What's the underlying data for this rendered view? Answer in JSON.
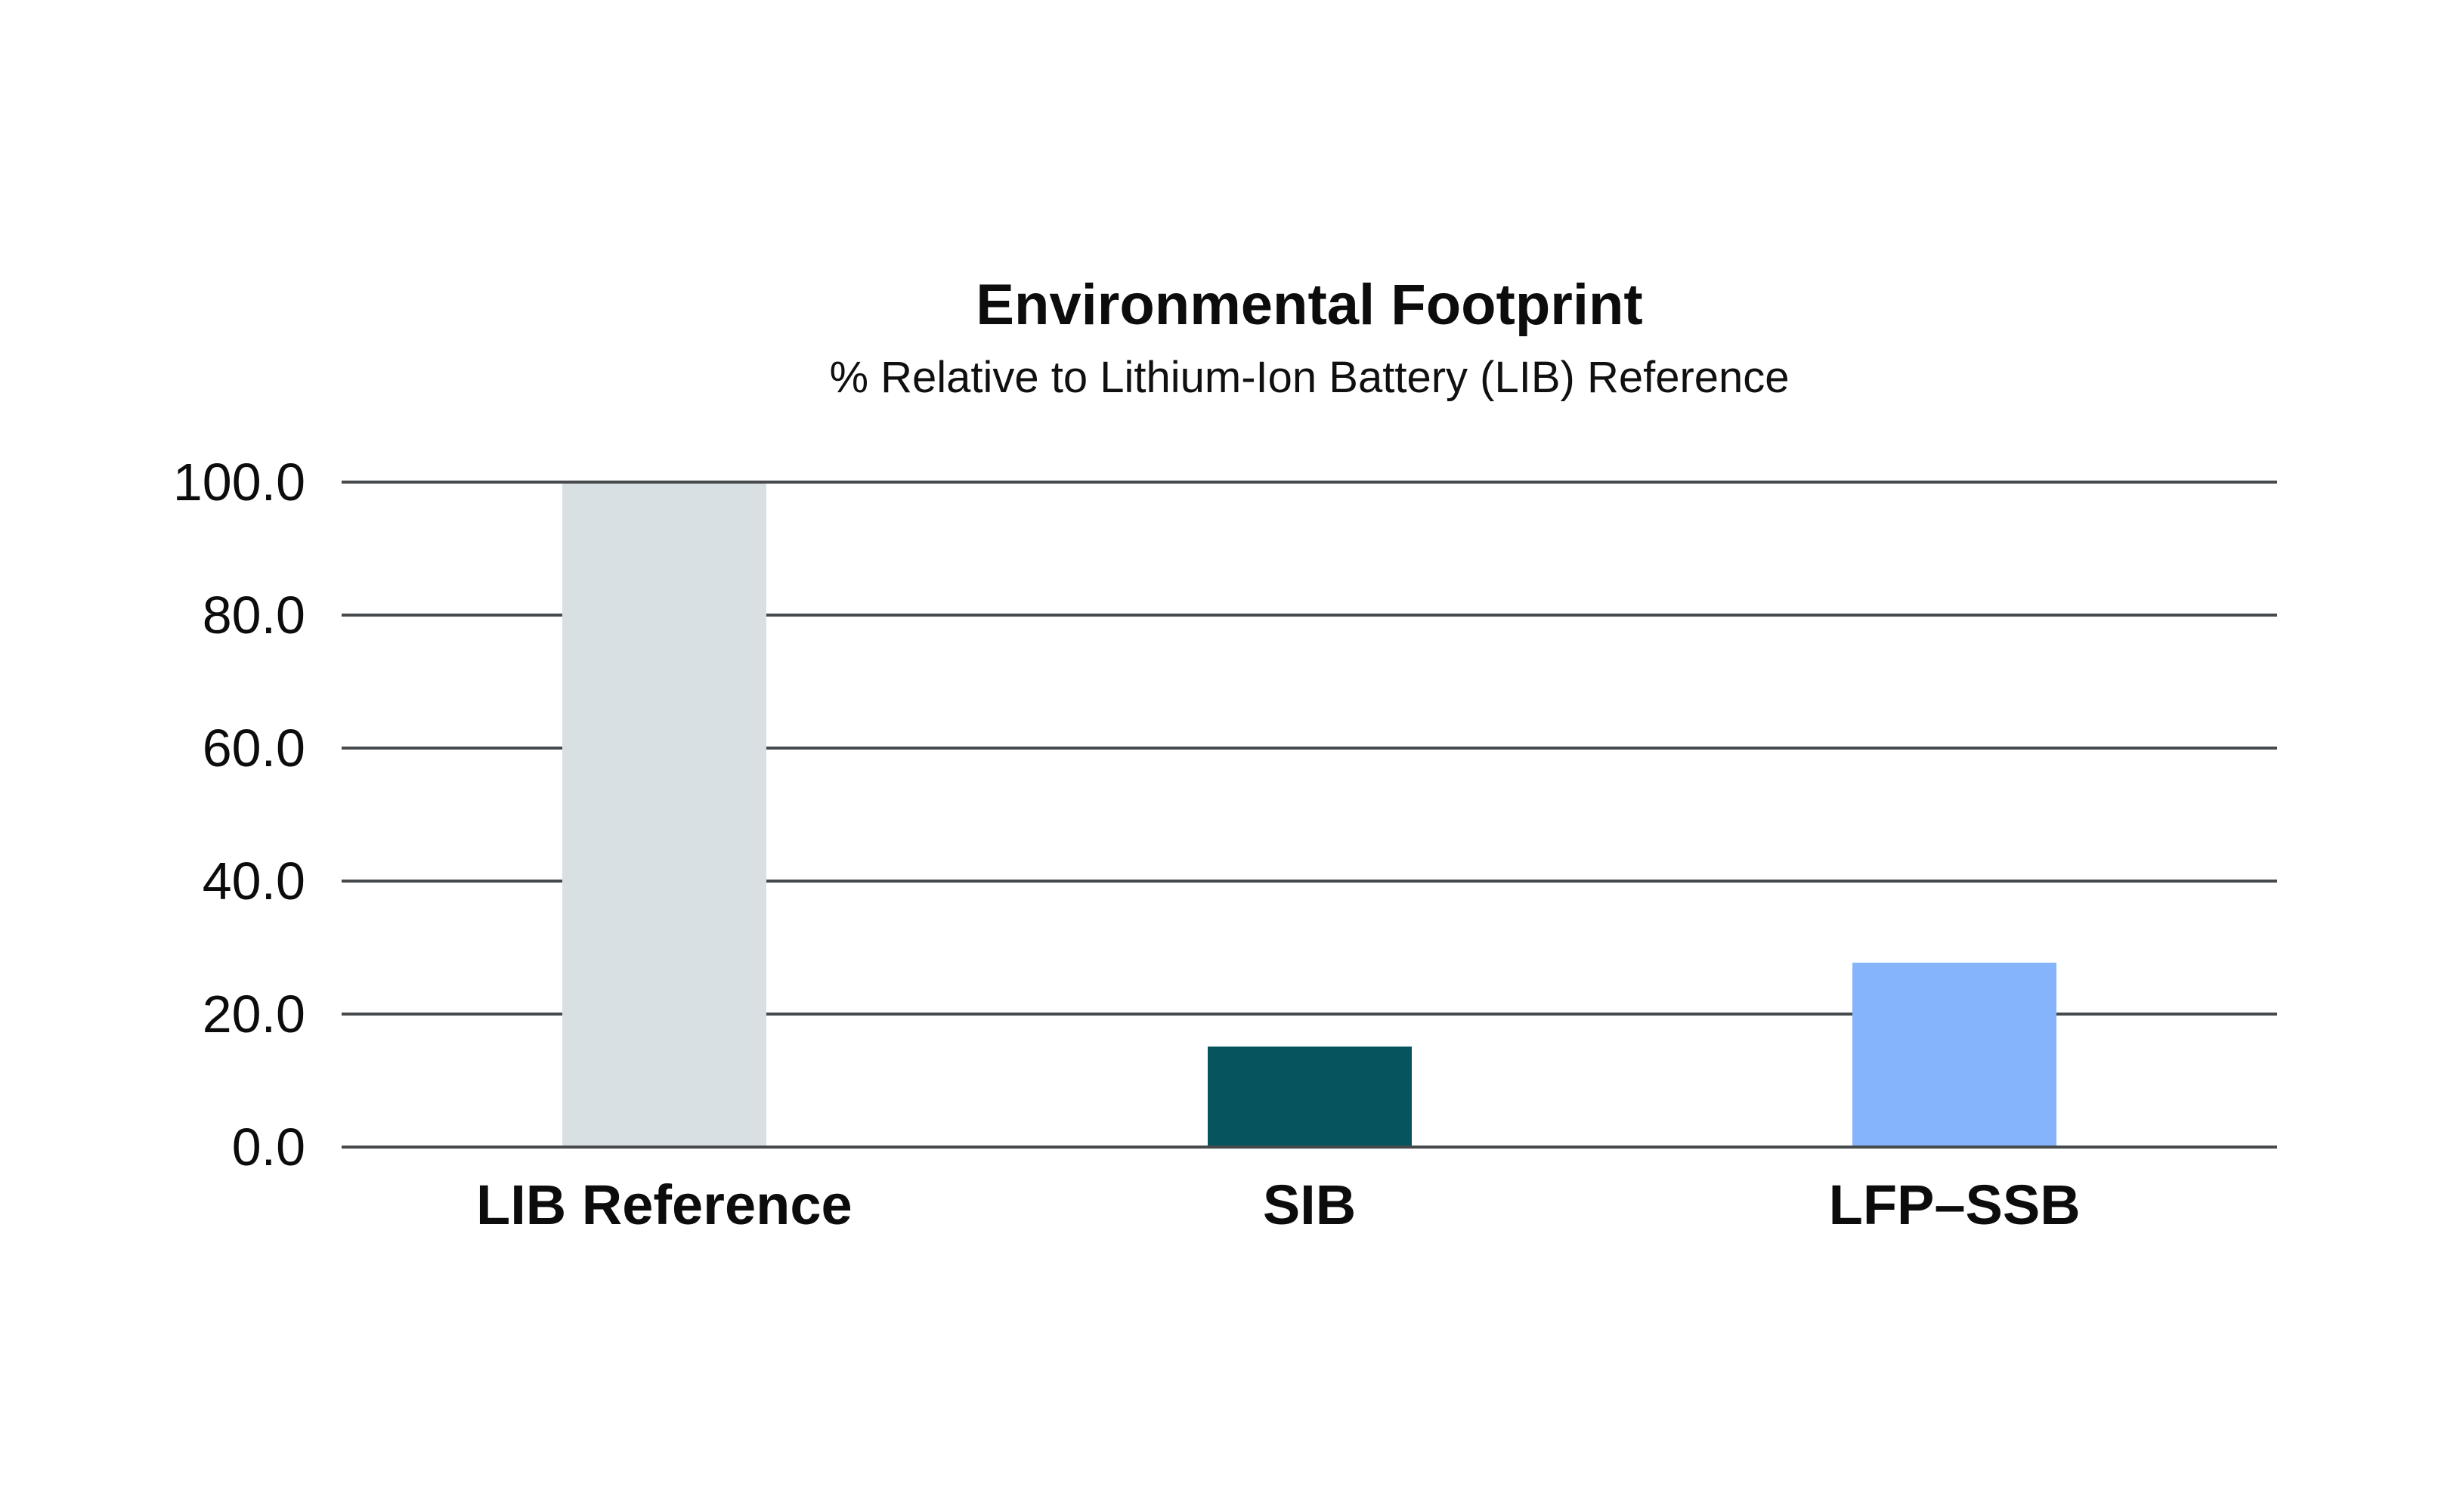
{
  "chart_data": {
    "type": "bar",
    "title": "Environmental Footprint",
    "subtitle": "% Relative to Lithium-Ion Battery (LIB) Reference",
    "categories": [
      "LIB Reference",
      "SIB",
      "LFP–SSB"
    ],
    "values": [
      100.0,
      15.3,
      28.0
    ],
    "bar_colors": [
      "#d9e0e4",
      "#05545e",
      "#85b4fc"
    ],
    "xlabel": "",
    "ylabel": "",
    "ylim": [
      0,
      100
    ],
    "yticks": [
      0,
      20,
      40,
      60,
      80,
      100
    ],
    "ytick_labels": [
      "0.0",
      "20.0",
      "40.0",
      "60.0",
      "80.0",
      "100.0"
    ],
    "grid": true,
    "gridline_color": "#464a4d",
    "legend_position": "none",
    "background_color": "#ffffff",
    "text_color": "#0c0c0c"
  }
}
